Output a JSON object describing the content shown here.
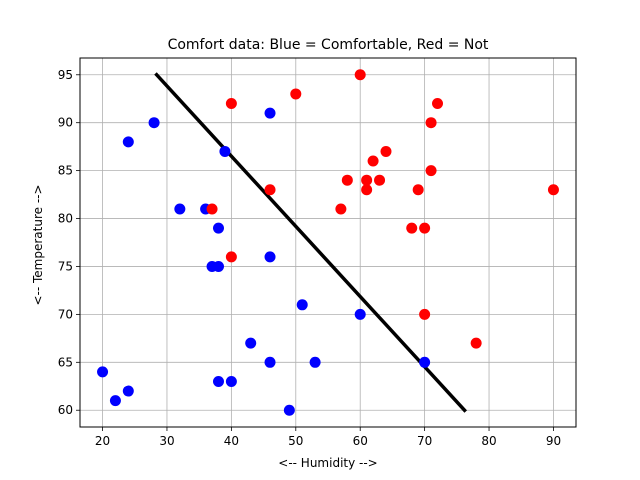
{
  "chart_data": {
    "type": "scatter",
    "title": "Comfort data: Blue = Comfortable, Red = Not",
    "xlabel": "<-- Humidity -->",
    "ylabel": "<-- Temperature -->",
    "xlim": [
      16.5,
      93.5
    ],
    "ylim": [
      58.25,
      96.75
    ],
    "xticks": [
      20,
      30,
      40,
      50,
      60,
      70,
      80,
      90
    ],
    "yticks": [
      60,
      65,
      70,
      75,
      80,
      85,
      90,
      95
    ],
    "grid": true,
    "series": [
      {
        "color": "#0000ff",
        "points": [
          [
            20,
            64
          ],
          [
            22,
            61
          ],
          [
            24,
            62
          ],
          [
            24,
            88
          ],
          [
            28,
            90
          ],
          [
            32,
            81
          ],
          [
            36,
            81
          ],
          [
            37,
            75
          ],
          [
            38,
            75
          ],
          [
            38,
            79
          ],
          [
            38,
            63
          ],
          [
            39,
            87
          ],
          [
            40,
            63
          ],
          [
            43,
            67
          ],
          [
            46,
            91
          ],
          [
            46,
            76
          ],
          [
            46,
            65
          ],
          [
            49,
            60
          ],
          [
            51,
            71
          ],
          [
            53,
            65
          ],
          [
            60,
            70
          ],
          [
            70,
            65
          ]
        ]
      },
      {
        "color": "#ff0000",
        "points": [
          [
            37,
            81
          ],
          [
            40,
            92
          ],
          [
            40,
            76
          ],
          [
            46,
            83
          ],
          [
            50,
            93
          ],
          [
            57,
            81
          ],
          [
            58,
            84
          ],
          [
            60,
            95
          ],
          [
            61,
            84
          ],
          [
            61,
            83
          ],
          [
            62,
            86
          ],
          [
            63,
            84
          ],
          [
            64,
            87
          ],
          [
            68,
            79
          ],
          [
            69,
            83
          ],
          [
            70,
            79
          ],
          [
            70,
            70
          ],
          [
            71,
            90
          ],
          [
            71,
            85
          ],
          [
            72,
            92
          ],
          [
            78,
            67
          ],
          [
            90,
            83
          ]
        ]
      }
    ],
    "boundary_line": {
      "color": "#000000",
      "from": [
        28.4,
        95
      ],
      "to": [
        76.2,
        60
      ]
    }
  }
}
